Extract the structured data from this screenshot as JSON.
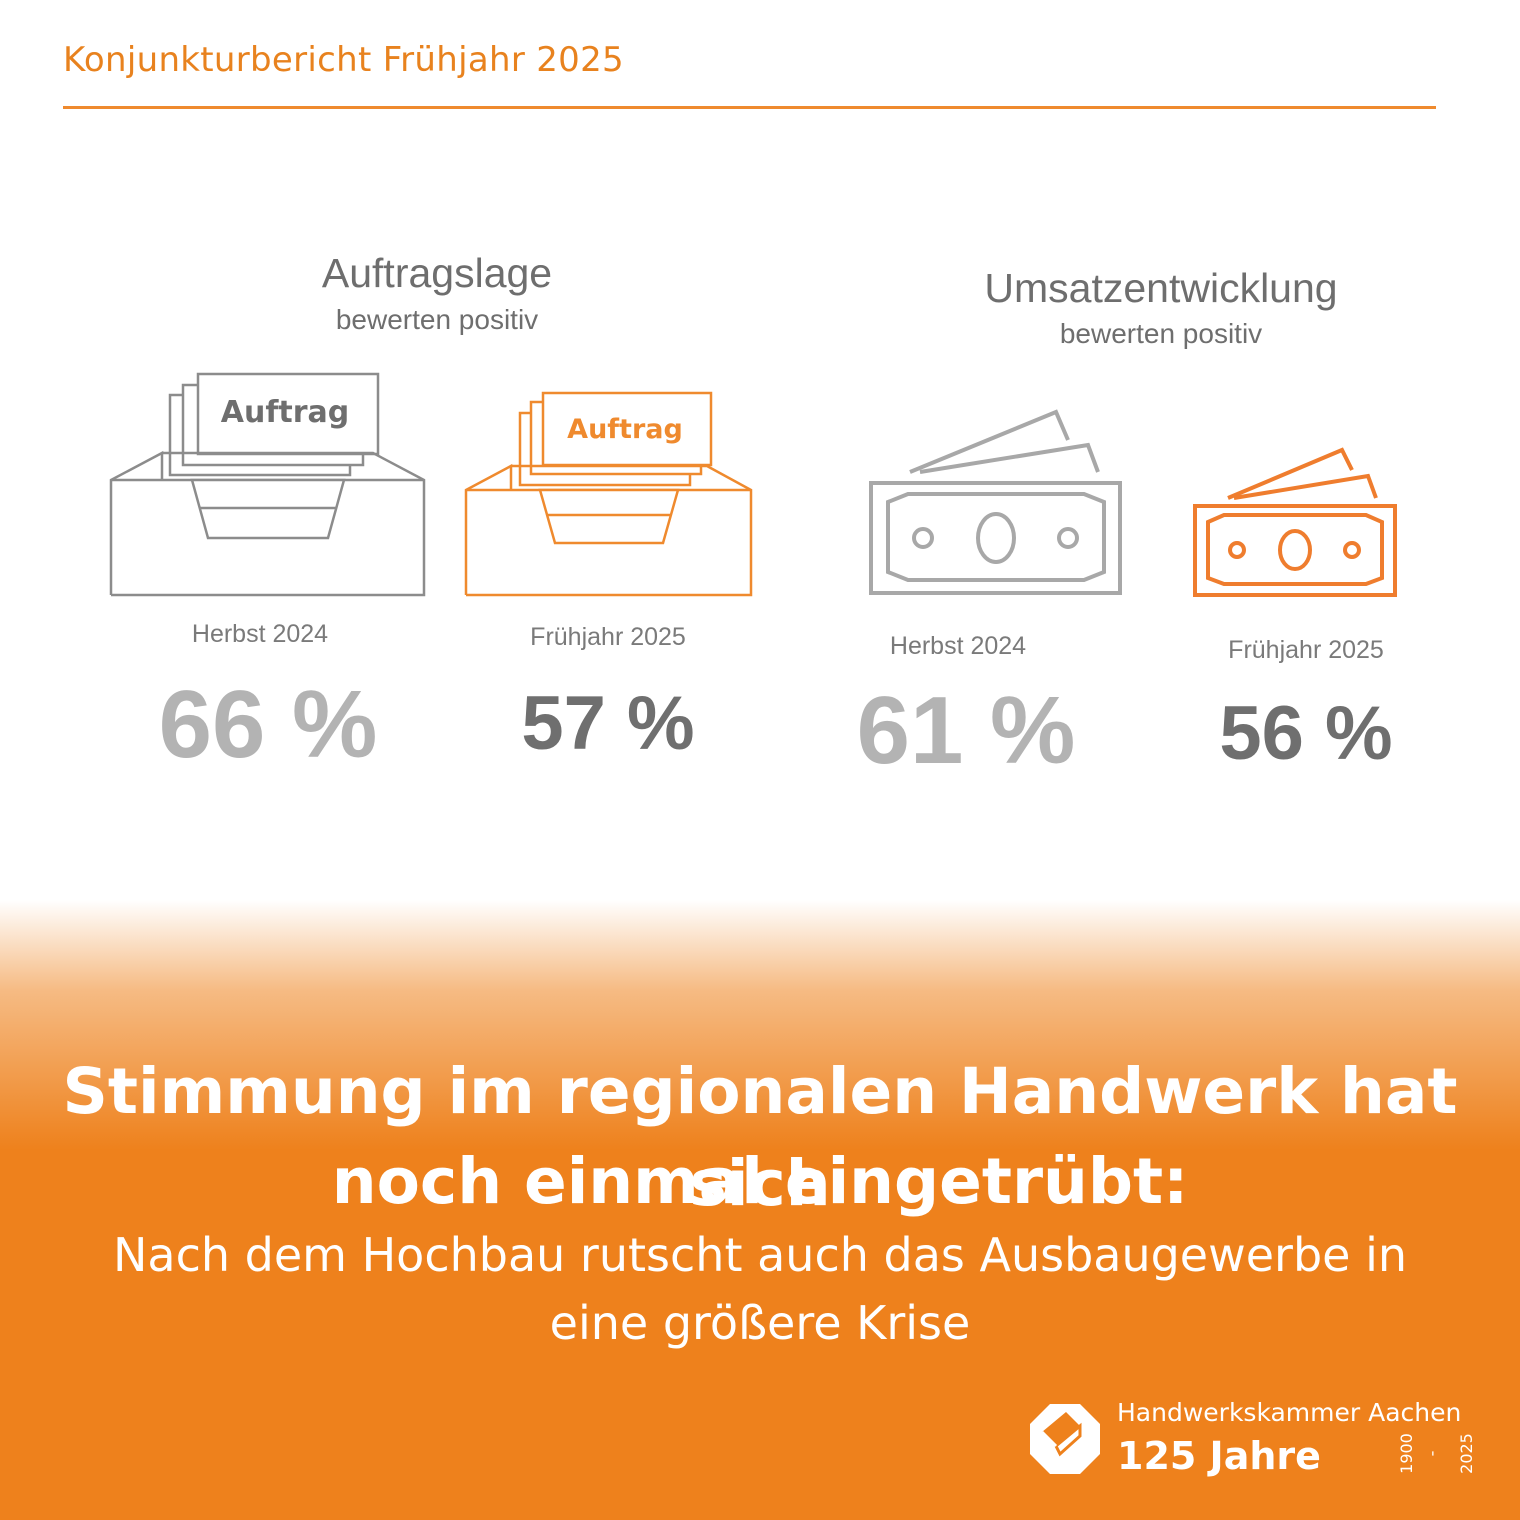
{
  "header": {
    "title": "Konjunkturbericht Frühjahr 2025"
  },
  "groups": [
    {
      "title": "Auftragslage",
      "subtitle": "bewerten positiv",
      "icon_label": "Auftrag",
      "items": [
        {
          "period": "Herbst 2024",
          "value": "66 %",
          "value_num": 66
        },
        {
          "period": "Frühjahr 2025",
          "value": "57 %",
          "value_num": 57
        }
      ]
    },
    {
      "title": "Umsatzentwicklung",
      "subtitle": "bewerten positiv",
      "items": [
        {
          "period": "Herbst 2024",
          "value": "61 %",
          "value_num": 61
        },
        {
          "period": "Frühjahr 2025",
          "value": "56 %",
          "value_num": 56
        }
      ]
    }
  ],
  "banner": {
    "headline_line1": "Stimmung im regionalen Handwerk hat sich",
    "headline_line2": "noch einmal eingetrübt:",
    "sub_line1": "Nach dem Hochbau rutscht auch das Ausbaugewerbe in",
    "sub_line2": "eine größere Krise"
  },
  "logo": {
    "name": "Handwerkskammer Aachen",
    "anniversary": "125 Jahre",
    "year_start": "1900",
    "year_end": "2025",
    "icon": "hwk-cube-logo-icon"
  },
  "colors": {
    "accent": "#ee811c",
    "gray_dark": "#6f6f6f",
    "gray_light": "#b3b3b3"
  }
}
